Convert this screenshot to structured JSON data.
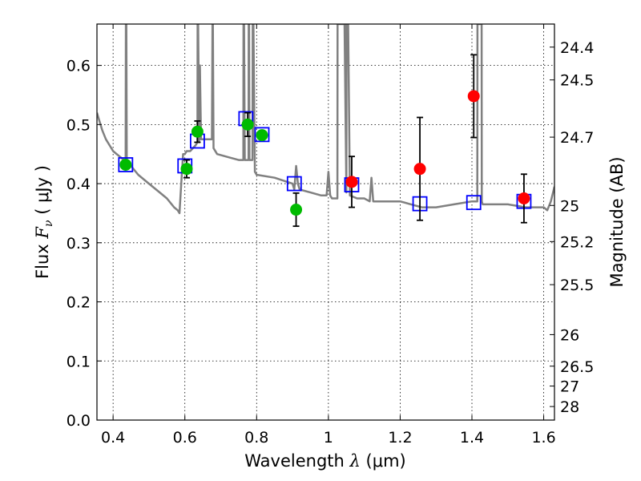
{
  "chart_data": {
    "type": "scatter",
    "xlabel": "Wavelength",
    "xlabel_symbol": "λ",
    "xlabel_unit": "(μm)",
    "ylabel": "Flux",
    "ylabel_symbol": "F",
    "ylabel_symbol_sub": "ν",
    "ylabel_unit": "( μJy )",
    "y2label": "Magnitude (AB)",
    "xlim": [
      0.355,
      1.63
    ],
    "ylim": [
      0.0,
      0.67
    ],
    "grid": true,
    "x_ticks": [
      0.4,
      0.6,
      0.8,
      1.0,
      1.2,
      1.4,
      1.6
    ],
    "x_tick_labels": [
      "0.4",
      "0.6",
      "0.8",
      "1",
      "1.2",
      "1.4",
      "1.6"
    ],
    "y_ticks": [
      0.0,
      0.1,
      0.2,
      0.3,
      0.4,
      0.5,
      0.6
    ],
    "y_tick_labels": [
      "0.0",
      "0.1",
      "0.2",
      "0.3",
      "0.4",
      "0.5",
      "0.6"
    ],
    "y2_ticks": [
      {
        "mag": 24.4,
        "label": "24.4"
      },
      {
        "mag": 24.5,
        "label": "24.5"
      },
      {
        "mag": 24.7,
        "label": "24.7"
      },
      {
        "mag": 25.0,
        "label": "25"
      },
      {
        "mag": 25.2,
        "label": "25.2"
      },
      {
        "mag": 25.5,
        "label": "25.5"
      },
      {
        "mag": 26.0,
        "label": "26"
      },
      {
        "mag": 26.5,
        "label": "26.5"
      },
      {
        "mag": 27.0,
        "label": "27"
      },
      {
        "mag": 28.0,
        "label": "28"
      }
    ],
    "colors": {
      "model": "#808080",
      "model_points": "#0000ff",
      "optical": "#00bb00",
      "nir": "#ff0000",
      "errorbar": "#000000",
      "grid": "#000000"
    },
    "model_spectrum": {
      "x": [
        0.355,
        0.36,
        0.37,
        0.38,
        0.39,
        0.4,
        0.41,
        0.42,
        0.43,
        0.435,
        0.4355,
        0.437,
        0.438,
        0.44,
        0.45,
        0.47,
        0.5,
        0.53,
        0.55,
        0.57,
        0.58,
        0.585,
        0.59,
        0.595,
        0.6,
        0.605,
        0.615,
        0.63,
        0.635,
        0.6355,
        0.637,
        0.64,
        0.6405,
        0.642,
        0.645,
        0.66,
        0.6755,
        0.677,
        0.678,
        0.68,
        0.69,
        0.72,
        0.75,
        0.763,
        0.7635,
        0.765,
        0.767,
        0.77,
        0.7775,
        0.778,
        0.779,
        0.78,
        0.782,
        0.7885,
        0.789,
        0.791,
        0.795,
        0.8,
        0.85,
        0.9,
        0.905,
        0.91,
        0.915,
        0.92,
        0.95,
        0.98,
        0.995,
        1.0,
        1.005,
        1.01,
        1.02,
        1.025,
        1.0255,
        1.045,
        1.05,
        1.0505,
        1.055,
        1.06,
        1.08,
        1.1,
        1.115,
        1.12,
        1.125,
        1.14,
        1.17,
        1.2,
        1.23,
        1.26,
        1.3,
        1.35,
        1.4,
        1.415,
        1.4155,
        1.427,
        1.4275,
        1.43,
        1.45,
        1.5,
        1.55,
        1.58,
        1.6,
        1.61,
        1.62,
        1.63
      ],
      "y": [
        0.52,
        0.51,
        0.49,
        0.475,
        0.465,
        0.455,
        0.45,
        0.445,
        0.44,
        0.44,
        0.67,
        0.67,
        0.44,
        0.44,
        0.43,
        0.415,
        0.4,
        0.385,
        0.375,
        0.36,
        0.355,
        0.35,
        0.4,
        0.45,
        0.45,
        0.455,
        0.455,
        0.465,
        0.47,
        0.67,
        0.67,
        0.47,
        0.6,
        0.6,
        0.475,
        0.475,
        0.475,
        0.67,
        0.67,
        0.46,
        0.45,
        0.445,
        0.44,
        0.44,
        0.67,
        0.67,
        0.44,
        0.44,
        0.44,
        0.67,
        0.67,
        0.44,
        0.44,
        0.44,
        0.67,
        0.67,
        0.42,
        0.415,
        0.41,
        0.4,
        0.39,
        0.43,
        0.4,
        0.39,
        0.385,
        0.38,
        0.38,
        0.42,
        0.38,
        0.375,
        0.375,
        0.375,
        0.67,
        0.67,
        0.385,
        0.67,
        0.67,
        0.38,
        0.375,
        0.375,
        0.37,
        0.41,
        0.37,
        0.37,
        0.37,
        0.37,
        0.365,
        0.36,
        0.36,
        0.365,
        0.37,
        0.37,
        0.67,
        0.67,
        0.37,
        0.365,
        0.365,
        0.365,
        0.36,
        0.36,
        0.36,
        0.355,
        0.37,
        0.395
      ]
    },
    "model_photometry": {
      "x": [
        0.435,
        0.6,
        0.635,
        0.77,
        0.815,
        0.905,
        1.065,
        1.255,
        1.405,
        1.545
      ],
      "y": [
        0.432,
        0.43,
        0.472,
        0.51,
        0.483,
        0.4,
        0.398,
        0.366,
        0.368,
        0.37
      ]
    },
    "observed_optical": {
      "x": [
        0.435,
        0.605,
        0.635,
        0.775,
        0.815,
        0.91
      ],
      "y": [
        0.432,
        0.425,
        0.488,
        0.5,
        0.482,
        0.356
      ],
      "yerr": [
        0.0,
        0.015,
        0.018,
        0.02,
        0.0,
        0.028
      ]
    },
    "observed_nir": {
      "x": [
        1.065,
        1.255,
        1.405,
        1.545
      ],
      "y": [
        0.403,
        0.425,
        0.548,
        0.375
      ],
      "yerr": [
        0.043,
        0.087,
        0.07,
        0.041
      ]
    }
  }
}
